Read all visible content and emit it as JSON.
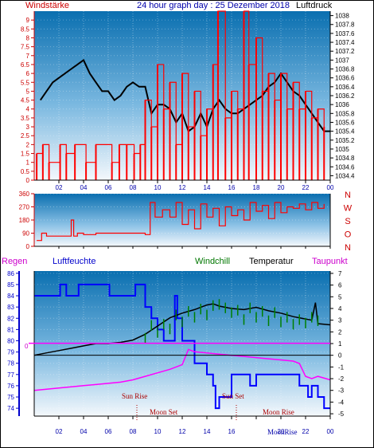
{
  "chart_data": [
    {
      "type": "line",
      "name_left": "Windstärke",
      "title": "24 hour graph day : 25 Dezember 2018",
      "name_right": "Luftdruck",
      "x_ticks": [
        "02",
        "04",
        "06",
        "08",
        "10",
        "12",
        "14",
        "16",
        "18",
        "20",
        "22",
        "00"
      ],
      "y_left_ticks": [
        "9",
        "8.5",
        "8",
        "7.5",
        "7",
        "6.5",
        "6",
        "5.5",
        "5",
        "4.5",
        "4",
        "3.5",
        "3",
        "2.5",
        "2",
        "1.5",
        "1",
        "0.5",
        "0"
      ],
      "y_right_ticks": [
        "1038",
        "1037.8",
        "1037.6",
        "1037.4",
        "1037.2",
        "1037",
        "1036.8",
        "1036.6",
        "1036.4",
        "1036.2",
        "1036",
        "1035.8",
        "1035.6",
        "1035.4",
        "1035.2",
        "1035",
        "1034.8",
        "1034.6",
        "1034.4"
      ],
      "ylim_left": [
        0,
        9.5
      ],
      "ylim_right": [
        1034.3,
        1038.1
      ],
      "series": [
        {
          "name": "Luftdruck",
          "axis": "right",
          "color": "#000000",
          "x": [
            0.5,
            1,
            1.5,
            2,
            2.5,
            3,
            3.5,
            4,
            4.5,
            5,
            5.5,
            6,
            6.5,
            7,
            7.5,
            8,
            8.5,
            9,
            9.5,
            10,
            10.5,
            11,
            11.5,
            12,
            12.5,
            13,
            13.5,
            14,
            14.5,
            15,
            15.5,
            16,
            16.5,
            17,
            17.5,
            18,
            18.5,
            19,
            19.5,
            20,
            20.5,
            21,
            21.5,
            22,
            22.5,
            23,
            23.5,
            24
          ],
          "y": [
            1036.1,
            1036.3,
            1036.5,
            1036.6,
            1036.7,
            1036.8,
            1036.9,
            1037.0,
            1036.7,
            1036.5,
            1036.3,
            1036.3,
            1036.1,
            1036.2,
            1036.4,
            1036.5,
            1036.4,
            1036.4,
            1035.8,
            1036.0,
            1036.0,
            1035.9,
            1035.6,
            1035.8,
            1035.4,
            1035.5,
            1035.8,
            1035.5,
            1035.9,
            1036.1,
            1035.9,
            1035.8,
            1035.8,
            1035.9,
            1036.0,
            1036.1,
            1036.2,
            1036.4,
            1036.5,
            1036.7,
            1036.5,
            1036.3,
            1036.2,
            1036.0,
            1035.8,
            1035.6,
            1035.4,
            1035.4
          ]
        },
        {
          "name": "Windstärke",
          "axis": "left",
          "color": "#ff0000",
          "x": [
            0.2,
            0.7,
            1.2,
            2.1,
            2.6,
            3.3,
            4.2,
            5.0,
            6.3,
            6.9,
            7.5,
            8.1,
            8.6,
            9.0,
            9.5,
            10.0,
            10.5,
            11.0,
            11.5,
            12.0,
            12.5,
            13.0,
            13.5,
            14.0,
            14.5,
            14.9,
            15.5,
            16.0,
            16.5,
            17.0,
            17.4,
            18.0,
            18.5,
            19.0,
            19.5,
            20.0,
            20.5,
            21.0,
            21.5,
            22.0,
            22.5,
            23.0,
            23.5
          ],
          "y": [
            1.5,
            2.0,
            1.0,
            2.0,
            1.5,
            2.0,
            1.0,
            2.0,
            1.0,
            2.0,
            2.0,
            1.5,
            2.0,
            4.5,
            3.0,
            6.5,
            4.0,
            5.5,
            2.0,
            6.0,
            3.0,
            5.0,
            2.5,
            4.0,
            6.5,
            9.5,
            3.5,
            5.0,
            4.0,
            9.5,
            6.5,
            8.0,
            5.0,
            6.0,
            4.5,
            6.0,
            4.0,
            5.5,
            4.0,
            5.0,
            3.5,
            4.0,
            3.0
          ]
        }
      ]
    },
    {
      "type": "line",
      "ylabels_right": [
        "N",
        "W",
        "S",
        "O",
        "N"
      ],
      "y_ticks": [
        "360",
        "270",
        "180",
        "90",
        "0"
      ],
      "ylim": [
        0,
        360
      ],
      "series": [
        {
          "name": "Windrichtung",
          "color": "#ff0000",
          "x": [
            0.2,
            0.6,
            1.0,
            2.0,
            3.0,
            3.2,
            3.5,
            4.0,
            5.0,
            6.0,
            7.0,
            8.0,
            9.0,
            9.4,
            9.8,
            10.4,
            11.0,
            11.5,
            12.0,
            12.5,
            13.0,
            13.5,
            14.0,
            14.5,
            15.0,
            15.5,
            16.0,
            16.5,
            17.0,
            17.5,
            18.0,
            18.5,
            19.0,
            19.5,
            20.0,
            20.5,
            21.0,
            21.5,
            22.0,
            22.5,
            23.0,
            23.5
          ],
          "y": [
            40,
            90,
            70,
            70,
            180,
            70,
            90,
            80,
            90,
            90,
            90,
            90,
            80,
            300,
            200,
            250,
            200,
            300,
            150,
            250,
            120,
            290,
            200,
            260,
            140,
            270,
            210,
            250,
            180,
            300,
            240,
            280,
            190,
            300,
            230,
            270,
            260,
            290,
            250,
            300,
            260,
            290
          ]
        }
      ]
    },
    {
      "type": "line",
      "labels": [
        "Regen",
        "Luftfeuchte",
        "Windchill",
        "Temperatur",
        "Taupunkt"
      ],
      "x_ticks": [
        "02",
        "04",
        "06",
        "08",
        "10",
        "12",
        "14",
        "16",
        "18",
        "20",
        "22",
        "00"
      ],
      "y_left_ticks": [
        "86",
        "85",
        "84",
        "83",
        "82",
        "81",
        "80",
        "79",
        "78",
        "77",
        "76",
        "75",
        "74"
      ],
      "y_right_ticks": [
        "7",
        "6",
        "5",
        "4",
        "3",
        "2",
        "1",
        "0",
        "-1",
        "-2",
        "-3",
        "-4",
        "-5"
      ],
      "rain_marker": "0",
      "ylim_humidity": [
        73.3,
        86.2
      ],
      "ylim_temp": [
        -5.2,
        7.2
      ],
      "annotations": [
        "Sun Rise",
        "Moon Set",
        "Sun Set",
        "Moon Rise",
        "MoonRise"
      ],
      "series": [
        {
          "name": "Luftfeuchte",
          "axis": "left",
          "color": "#0000ff",
          "x": [
            0,
            2,
            2.1,
            2.5,
            2.6,
            3.5,
            3.6,
            6,
            6.1,
            8,
            8.2,
            9,
            9.5,
            10,
            10.5,
            11,
            11.4,
            11.6,
            12,
            12.1,
            13,
            13.5,
            14,
            14.5,
            14.7,
            15,
            15.5,
            16,
            16.5,
            17,
            17.5,
            18,
            19,
            20,
            21,
            21.5,
            22,
            22.2,
            22.5,
            23,
            23.5,
            24
          ],
          "y": [
            84,
            84,
            85,
            85,
            84,
            84,
            85,
            85,
            84,
            84,
            85,
            83,
            82,
            81,
            80,
            80,
            84,
            82,
            80,
            80,
            78,
            78,
            77,
            76,
            74,
            75,
            75,
            77,
            77,
            77,
            76,
            77,
            77,
            77,
            77,
            76,
            76,
            75,
            76,
            75,
            74,
            74
          ]
        },
        {
          "name": "Temperatur",
          "axis": "right",
          "color": "#000000",
          "x": [
            0,
            1,
            2,
            3,
            4,
            5,
            6,
            7,
            8,
            9,
            10,
            11,
            12,
            13,
            14,
            14.5,
            15,
            16,
            17,
            18,
            19,
            20,
            21,
            22,
            22.5,
            22.8,
            23,
            24
          ],
          "y": [
            0,
            0.2,
            0.4,
            0.6,
            0.8,
            1.0,
            1.0,
            1.1,
            1.3,
            1.8,
            2.5,
            3.2,
            3.6,
            3.9,
            4.3,
            4.4,
            4.2,
            4.0,
            3.9,
            4.1,
            3.8,
            3.6,
            3.3,
            3.1,
            3.0,
            4.5,
            2.7,
            2.6
          ]
        },
        {
          "name": "Windchill",
          "axis": "right",
          "color": "#008000",
          "x": [
            9,
            9.5,
            10,
            10.5,
            11,
            11.5,
            12,
            12.5,
            13,
            13.5,
            14,
            14.5,
            15,
            15.5,
            16,
            16.5,
            17,
            17.5,
            18,
            18.5,
            19,
            19.5,
            20,
            20.5,
            21,
            21.5,
            22,
            22.5,
            23
          ],
          "y": [
            1.0,
            2.1,
            1.5,
            2.2,
            1.8,
            3.0,
            2.4,
            3.3,
            2.8,
            3.5,
            3.0,
            3.8,
            3.9,
            3.6,
            3.2,
            3.4,
            2.6,
            3.6,
            2.8,
            3.3,
            2.5,
            3.2,
            2.4,
            2.8,
            2.2,
            2.6,
            2.3,
            2.8,
            2.5
          ]
        },
        {
          "name": "Taupunkt",
          "axis": "right",
          "color": "#ff00ff",
          "x": [
            0,
            1,
            2,
            3,
            4,
            5,
            6,
            7,
            8,
            9,
            10,
            11,
            12,
            12.5,
            13,
            14,
            15,
            16,
            17,
            18,
            19,
            20,
            21,
            21.5,
            22,
            22.5,
            23,
            24
          ],
          "y": [
            -3,
            -2.9,
            -2.8,
            -2.7,
            -2.6,
            -2.5,
            -2.4,
            -2.3,
            -2.1,
            -1.8,
            -1.5,
            -1.2,
            -0.8,
            0.5,
            0.3,
            0.2,
            0.1,
            0,
            -0.1,
            -0.2,
            -0.3,
            -0.4,
            -0.5,
            -0.7,
            -1.8,
            -2.0,
            -1.8,
            -2.1
          ]
        }
      ]
    }
  ]
}
